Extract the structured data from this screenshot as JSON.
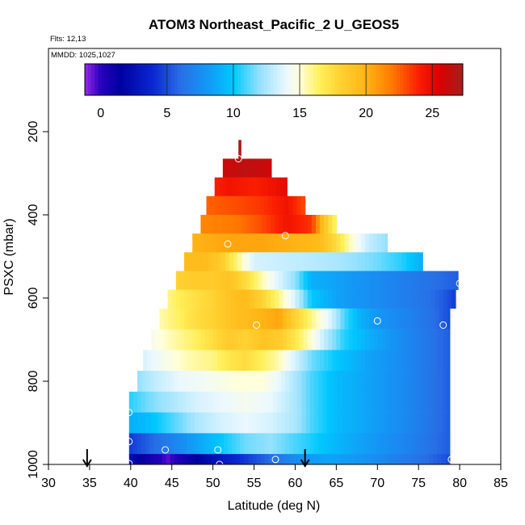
{
  "chart_data": {
    "type": "heatmap",
    "title": "ATOM3 Northeast_Pacific_2 U_GEOS5",
    "flights_label": "Flts: 12,13",
    "mmdd_label": "MMDD: 1025,1027",
    "xlabel": "Latitude (deg N)",
    "ylabel": "PSXC (mbar)",
    "xlim": [
      30,
      85
    ],
    "ylim": [
      1000,
      0
    ],
    "x_ticks": [
      30,
      35,
      40,
      45,
      50,
      55,
      60,
      65,
      70,
      75,
      80,
      85
    ],
    "y_ticks": [
      200,
      400,
      600,
      800,
      1000
    ],
    "colorbar": {
      "range": [
        -1.2,
        27.3
      ],
      "ticks": [
        0,
        5,
        10,
        15,
        20,
        25
      ]
    },
    "arrows_latitude": [
      34.7,
      61.2
    ],
    "rows": [
      {
        "p": [
          220,
          265
        ],
        "lat": [
          53.1,
          53.4
        ],
        "stops": [
          [
            53.1,
            27.0
          ],
          [
            53.4,
            27.0
          ]
        ]
      },
      {
        "p": [
          265,
          310
        ],
        "lat": [
          51.2,
          57.1
        ],
        "stops": [
          [
            51.2,
            26.0
          ],
          [
            54.0,
            26.5
          ],
          [
            57.1,
            26.0
          ]
        ]
      },
      {
        "p": [
          310,
          355
        ],
        "lat": [
          50.2,
          59.0
        ],
        "stops": [
          [
            50.2,
            24.0
          ],
          [
            52.0,
            24.5
          ],
          [
            55.0,
            24.0
          ],
          [
            59.0,
            25.0
          ]
        ]
      },
      {
        "p": [
          355,
          400
        ],
        "lat": [
          49.2,
          61.2
        ],
        "stops": [
          [
            49.2,
            22.5
          ],
          [
            53.0,
            23.0
          ],
          [
            56.0,
            23.5
          ],
          [
            59.0,
            24.5
          ],
          [
            61.2,
            23.0
          ]
        ]
      },
      {
        "p": [
          400,
          445
        ],
        "lat": [
          48.5,
          65.0
        ],
        "stops": [
          [
            48.5,
            21.5
          ],
          [
            53.0,
            22.0
          ],
          [
            56.0,
            23.0
          ],
          [
            59.0,
            24.5
          ],
          [
            62.0,
            23.5
          ],
          [
            63.5,
            19.0
          ],
          [
            65.0,
            16.0
          ]
        ]
      },
      {
        "p": [
          445,
          490
        ],
        "lat": [
          47.5,
          71.2
        ],
        "stops": [
          [
            47.5,
            20.0
          ],
          [
            52.0,
            20.5
          ],
          [
            56.0,
            20.5
          ],
          [
            60.0,
            20.0
          ],
          [
            63.0,
            19.5
          ],
          [
            65.0,
            17.5
          ],
          [
            67.0,
            15.0
          ],
          [
            69.0,
            13.0
          ],
          [
            71.2,
            12.0
          ]
        ]
      },
      {
        "p": [
          490,
          535
        ],
        "lat": [
          46.5,
          75.5
        ],
        "stops": [
          [
            46.5,
            19.5
          ],
          [
            49.0,
            19.5
          ],
          [
            51.0,
            18.5
          ],
          [
            53.0,
            16.0
          ],
          [
            55.0,
            13.5
          ],
          [
            60.0,
            13.0
          ],
          [
            65.0,
            12.5
          ],
          [
            70.0,
            11.5
          ],
          [
            73.0,
            10.5
          ],
          [
            75.5,
            9.0
          ]
        ]
      },
      {
        "p": [
          535,
          580
        ],
        "lat": [
          45.5,
          79.8
        ],
        "stops": [
          [
            45.5,
            18.0
          ],
          [
            48.0,
            18.5
          ],
          [
            50.0,
            18.5
          ],
          [
            52.0,
            19.0
          ],
          [
            54.0,
            17.5
          ],
          [
            57.0,
            14.5
          ],
          [
            60.0,
            12.0
          ],
          [
            62.0,
            9.0
          ],
          [
            65.0,
            8.5
          ],
          [
            70.0,
            7.5
          ],
          [
            75.0,
            6.5
          ],
          [
            79.8,
            5.5
          ]
        ]
      },
      {
        "p": [
          580,
          625
        ],
        "lat": [
          44.5,
          79.5
        ],
        "stops": [
          [
            44.5,
            16.0
          ],
          [
            47.0,
            17.0
          ],
          [
            50.0,
            18.0
          ],
          [
            52.0,
            19.0
          ],
          [
            54.0,
            19.5
          ],
          [
            56.0,
            18.0
          ],
          [
            58.0,
            16.0
          ],
          [
            60.0,
            13.5
          ],
          [
            62.0,
            10.0
          ],
          [
            65.0,
            8.5
          ],
          [
            70.0,
            7.5
          ],
          [
            75.0,
            6.5
          ],
          [
            78.0,
            5.5
          ],
          [
            79.5,
            4.5
          ]
        ]
      },
      {
        "p": [
          625,
          675
        ],
        "lat": [
          43.5,
          78.8
        ],
        "stops": [
          [
            43.5,
            15.5
          ],
          [
            46.0,
            16.5
          ],
          [
            48.0,
            17.5
          ],
          [
            50.0,
            18.0
          ],
          [
            52.0,
            19.0
          ],
          [
            54.0,
            19.5
          ],
          [
            56.0,
            20.0
          ],
          [
            58.0,
            20.5
          ],
          [
            60.0,
            18.0
          ],
          [
            62.0,
            16.0
          ],
          [
            64.0,
            14.0
          ],
          [
            66.0,
            11.0
          ],
          [
            68.0,
            9.0
          ],
          [
            70.0,
            8.0
          ],
          [
            74.0,
            7.0
          ],
          [
            77.0,
            6.0
          ],
          [
            78.8,
            5.0
          ]
        ]
      },
      {
        "p": [
          675,
          725
        ],
        "lat": [
          42.5,
          78.8
        ],
        "stops": [
          [
            42.5,
            14.5
          ],
          [
            45.0,
            15.5
          ],
          [
            48.0,
            16.5
          ],
          [
            50.0,
            17.5
          ],
          [
            52.0,
            18.5
          ],
          [
            54.0,
            18.0
          ],
          [
            56.0,
            19.0
          ],
          [
            58.0,
            18.5
          ],
          [
            60.0,
            17.0
          ],
          [
            62.0,
            15.0
          ],
          [
            64.0,
            12.5
          ],
          [
            66.0,
            10.5
          ],
          [
            69.0,
            9.0
          ],
          [
            73.0,
            7.5
          ],
          [
            76.0,
            6.5
          ],
          [
            78.8,
            5.5
          ]
        ]
      },
      {
        "p": [
          725,
          775
        ],
        "lat": [
          41.5,
          78.8
        ],
        "stops": [
          [
            41.5,
            13.5
          ],
          [
            44.0,
            14.5
          ],
          [
            47.0,
            15.5
          ],
          [
            50.0,
            16.0
          ],
          [
            52.0,
            17.0
          ],
          [
            54.0,
            17.5
          ],
          [
            56.0,
            16.5
          ],
          [
            58.0,
            15.5
          ],
          [
            60.0,
            13.5
          ],
          [
            62.0,
            11.5
          ],
          [
            65.0,
            10.0
          ],
          [
            69.0,
            8.5
          ],
          [
            73.0,
            7.5
          ],
          [
            76.0,
            6.5
          ],
          [
            78.8,
            5.5
          ]
        ]
      },
      {
        "p": [
          775,
          825
        ],
        "lat": [
          40.8,
          78.8
        ],
        "stops": [
          [
            40.8,
            12.0
          ],
          [
            43.0,
            13.0
          ],
          [
            46.0,
            14.0
          ],
          [
            50.0,
            14.5
          ],
          [
            53.0,
            15.0
          ],
          [
            56.0,
            15.0
          ],
          [
            58.0,
            14.0
          ],
          [
            60.0,
            12.5
          ],
          [
            62.0,
            11.0
          ],
          [
            65.0,
            9.5
          ],
          [
            69.0,
            8.5
          ],
          [
            73.0,
            7.5
          ],
          [
            76.0,
            6.5
          ],
          [
            78.8,
            5.5
          ]
        ]
      },
      {
        "p": [
          825,
          875
        ],
        "lat": [
          39.8,
          78.8
        ],
        "stops": [
          [
            39.8,
            10.5
          ],
          [
            42.0,
            11.5
          ],
          [
            45.0,
            12.5
          ],
          [
            48.0,
            13.5
          ],
          [
            51.0,
            14.0
          ],
          [
            54.0,
            14.5
          ],
          [
            57.0,
            14.0
          ],
          [
            60.0,
            12.5
          ],
          [
            62.0,
            11.0
          ],
          [
            65.0,
            9.5
          ],
          [
            69.0,
            8.5
          ],
          [
            73.0,
            7.5
          ],
          [
            76.0,
            6.5
          ],
          [
            78.8,
            5.5
          ]
        ]
      },
      {
        "p": [
          875,
          925
        ],
        "lat": [
          39.8,
          78.8
        ],
        "stops": [
          [
            39.8,
            9.0
          ],
          [
            42.0,
            9.5
          ],
          [
            45.0,
            11.0
          ],
          [
            48.0,
            12.5
          ],
          [
            51.0,
            13.5
          ],
          [
            54.0,
            14.0
          ],
          [
            57.0,
            13.5
          ],
          [
            60.0,
            12.5
          ],
          [
            62.0,
            11.0
          ],
          [
            65.0,
            9.5
          ],
          [
            69.0,
            8.5
          ],
          [
            73.0,
            7.5
          ],
          [
            76.0,
            6.5
          ],
          [
            78.8,
            5.5
          ]
        ]
      },
      {
        "p": [
          925,
          975
        ],
        "lat": [
          39.8,
          78.8
        ],
        "stops": [
          [
            39.8,
            4.5
          ],
          [
            42.0,
            5.5
          ],
          [
            45.0,
            7.0
          ],
          [
            48.0,
            8.5
          ],
          [
            51.0,
            10.0
          ],
          [
            54.0,
            11.5
          ],
          [
            57.0,
            12.0
          ],
          [
            60.0,
            11.0
          ],
          [
            63.0,
            10.0
          ],
          [
            66.0,
            9.0
          ],
          [
            70.0,
            8.0
          ],
          [
            74.0,
            7.0
          ],
          [
            77.0,
            6.0
          ],
          [
            78.8,
            5.5
          ]
        ]
      },
      {
        "p": [
          975,
          1000
        ],
        "lat": [
          39.8,
          78.8
        ],
        "stops": [
          [
            39.8,
            2.5
          ],
          [
            41.0,
            1.5
          ],
          [
            43.0,
            0.5
          ],
          [
            44.5,
            -0.5
          ],
          [
            46.0,
            0.5
          ],
          [
            48.0,
            1.5
          ],
          [
            50.0,
            2.5
          ],
          [
            52.0,
            3.5
          ],
          [
            55.0,
            5.0
          ],
          [
            58.0,
            6.5
          ],
          [
            61.0,
            8.0
          ],
          [
            64.0,
            8.5
          ],
          [
            68.0,
            8.0
          ],
          [
            72.0,
            7.0
          ],
          [
            76.0,
            6.0
          ],
          [
            78.8,
            5.0
          ]
        ]
      }
    ],
    "circles": [
      {
        "lat": 53.1,
        "p": 265
      },
      {
        "lat": 58.8,
        "p": 450
      },
      {
        "lat": 51.8,
        "p": 470
      },
      {
        "lat": 55.3,
        "p": 665
      },
      {
        "lat": 70.0,
        "p": 655
      },
      {
        "lat": 78.0,
        "p": 665
      },
      {
        "lat": 80.0,
        "p": 565
      },
      {
        "lat": 39.8,
        "p": 875
      },
      {
        "lat": 39.8,
        "p": 945
      },
      {
        "lat": 44.2,
        "p": 965
      },
      {
        "lat": 50.6,
        "p": 965
      },
      {
        "lat": 39.8,
        "p": 998
      },
      {
        "lat": 50.8,
        "p": 1000
      },
      {
        "lat": 57.6,
        "p": 988
      },
      {
        "lat": 79.0,
        "p": 988
      }
    ]
  }
}
